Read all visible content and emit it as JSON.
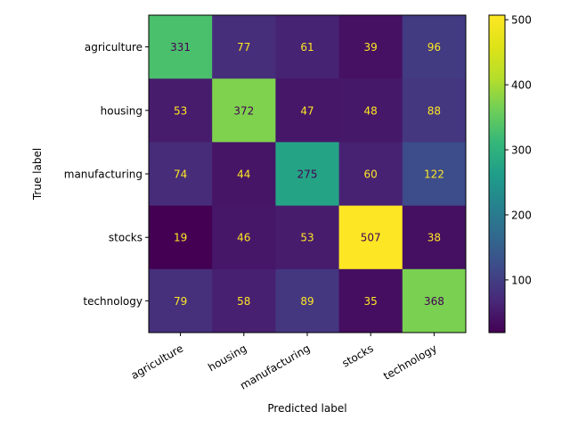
{
  "chart_data": {
    "type": "heatmap",
    "title": "",
    "xlabel": "Predicted label",
    "ylabel": "True label",
    "x_categories": [
      "agriculture",
      "housing",
      "manufacturing",
      "stocks",
      "technology"
    ],
    "y_categories": [
      "agriculture",
      "housing",
      "manufacturing",
      "stocks",
      "technology"
    ],
    "matrix": [
      [
        331,
        77,
        61,
        39,
        96
      ],
      [
        53,
        372,
        47,
        48,
        88
      ],
      [
        74,
        44,
        275,
        60,
        122
      ],
      [
        19,
        46,
        53,
        507,
        38
      ],
      [
        79,
        58,
        89,
        35,
        368
      ]
    ],
    "colormap": "viridis",
    "vmin": 19,
    "vmax": 507,
    "colorbar_ticks": [
      "100",
      "200",
      "300",
      "400",
      "500"
    ],
    "x_tick_rotation_deg": 30,
    "grid": false,
    "text_color_dark": "#440154",
    "text_color_light": "#fde725"
  }
}
